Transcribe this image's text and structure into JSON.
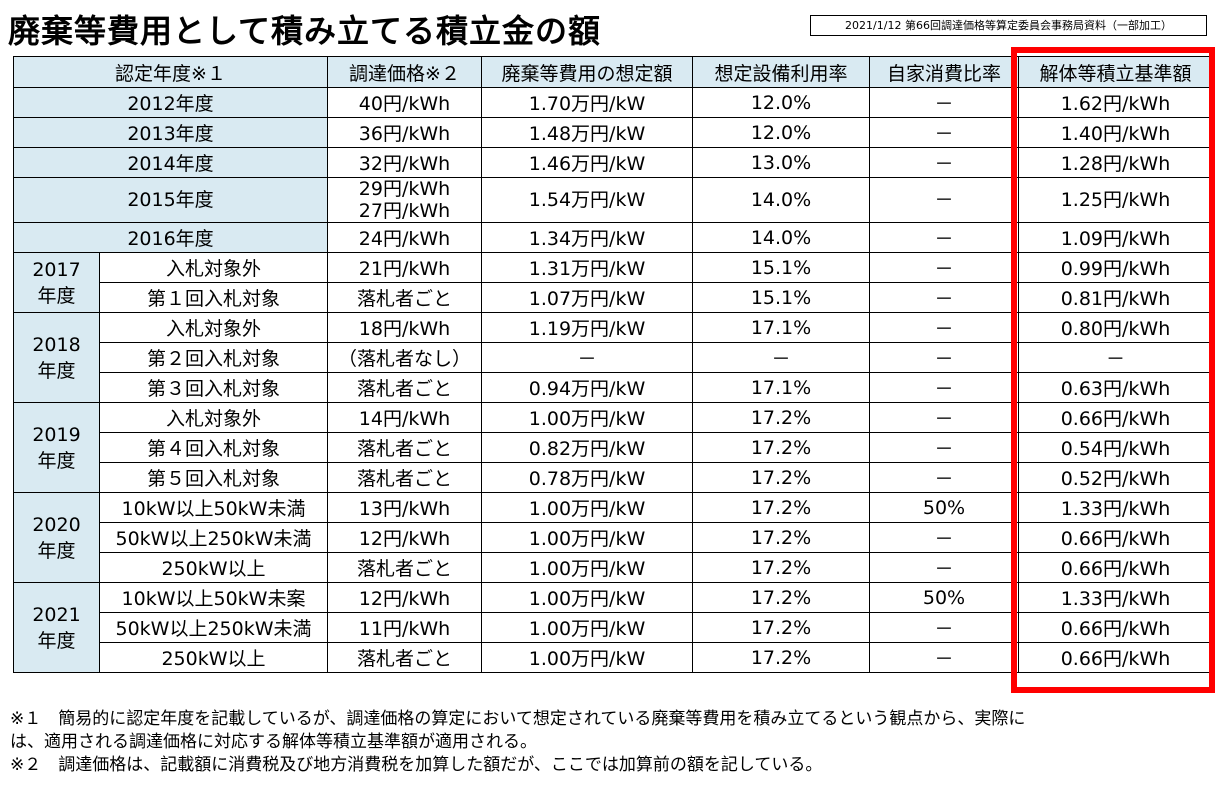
{
  "header": {
    "title": "廃棄等費用として積み立てる積立金の額",
    "source": "2021/1/12 第66回調達価格等算定委員会事務局資料（一部加工）"
  },
  "table": {
    "headers": [
      "認定年度※１",
      "調達価格※２",
      "廃棄等費用の想定額",
      "想定設備利用率",
      "自家消費比率",
      "解体等積立基準額"
    ],
    "simple_rows": [
      {
        "year": "2012年度",
        "price": "40円/kWh",
        "cost": "1.70万円/kW",
        "util": "12.0%",
        "self": "－",
        "reserve": "1.62円/kWh"
      },
      {
        "year": "2013年度",
        "price": "36円/kWh",
        "cost": "1.48万円/kW",
        "util": "12.0%",
        "self": "－",
        "reserve": "1.40円/kWh"
      },
      {
        "year": "2014年度",
        "price": "32円/kWh",
        "cost": "1.46万円/kW",
        "util": "13.0%",
        "self": "－",
        "reserve": "1.28円/kWh"
      },
      {
        "year": "2015年度",
        "price": "29円/kWh",
        "price2": "27円/kWh",
        "cost": "1.54万円/kW",
        "util": "14.0%",
        "self": "－",
        "reserve": "1.25円/kWh"
      },
      {
        "year": "2016年度",
        "price": "24円/kWh",
        "cost": "1.34万円/kW",
        "util": "14.0%",
        "self": "－",
        "reserve": "1.09円/kWh"
      }
    ],
    "groups": [
      {
        "year_num": "2017",
        "year_suffix": "年度",
        "rows": [
          {
            "category": "入札対象外",
            "price": "21円/kWh",
            "cost": "1.31万円/kW",
            "util": "15.1%",
            "self": "－",
            "reserve": "0.99円/kWh"
          },
          {
            "category": "第１回入札対象",
            "price": "落札者ごと",
            "cost": "1.07万円/kW",
            "util": "15.1%",
            "self": "－",
            "reserve": "0.81円/kWh"
          }
        ]
      },
      {
        "year_num": "2018",
        "year_suffix": "年度",
        "rows": [
          {
            "category": "入札対象外",
            "price": "18円/kWh",
            "cost": "1.19万円/kW",
            "util": "17.1%",
            "self": "－",
            "reserve": "0.80円/kWh"
          },
          {
            "category": "第２回入札対象",
            "price": "（落札者なし）",
            "cost": "－",
            "util": "－",
            "self": "－",
            "reserve": "－"
          },
          {
            "category": "第３回入札対象",
            "price": "落札者ごと",
            "cost": "0.94万円/kW",
            "util": "17.1%",
            "self": "－",
            "reserve": "0.63円/kWh"
          }
        ]
      },
      {
        "year_num": "2019",
        "year_suffix": "年度",
        "rows": [
          {
            "category": "入札対象外",
            "price": "14円/kWh",
            "cost": "1.00万円/kW",
            "util": "17.2%",
            "self": "－",
            "reserve": "0.66円/kWh"
          },
          {
            "category": "第４回入札対象",
            "price": "落札者ごと",
            "cost": "0.82万円/kW",
            "util": "17.2%",
            "self": "－",
            "reserve": "0.54円/kWh"
          },
          {
            "category": "第５回入札対象",
            "price": "落札者ごと",
            "cost": "0.78万円/kW",
            "util": "17.2%",
            "self": "－",
            "reserve": "0.52円/kWh"
          }
        ]
      },
      {
        "year_num": "2020",
        "year_suffix": "年度",
        "rows": [
          {
            "category": "10kW以上50kW未満",
            "price": "13円/kWh",
            "cost": "1.00万円/kW",
            "util": "17.2%",
            "self": "50%",
            "reserve": "1.33円/kWh"
          },
          {
            "category": "50kW以上250kW未満",
            "price": "12円/kWh",
            "cost": "1.00万円/kW",
            "util": "17.2%",
            "self": "－",
            "reserve": "0.66円/kWh"
          },
          {
            "category": "250kW以上",
            "price": "落札者ごと",
            "cost": "1.00万円/kW",
            "util": "17.2%",
            "self": "－",
            "reserve": "0.66円/kWh"
          }
        ]
      },
      {
        "year_num": "2021",
        "year_suffix": "年度",
        "rows": [
          {
            "category": "10kW以上50kW未案",
            "price": "12円/kWh",
            "cost": "1.00万円/kW",
            "util": "17.2%",
            "self": "50%",
            "reserve": "1.33円/kWh"
          },
          {
            "category": "50kW以上250kW未満",
            "price": "11円/kWh",
            "cost": "1.00万円/kW",
            "util": "17.2%",
            "self": "－",
            "reserve": "0.66円/kWh"
          },
          {
            "category": "250kW以上",
            "price": "落札者ごと",
            "cost": "1.00万円/kW",
            "util": "17.2%",
            "self": "－",
            "reserve": "0.66円/kWh"
          }
        ]
      }
    ]
  },
  "notes": {
    "note1_line1": "※１　簡易的に認定年度を記載しているが、調達価格の算定において想定されている廃棄等費用を積み立てるという観点から、実際に",
    "note1_line2": "は、適用される調達価格に対応する解体等積立基準額が適用される。",
    "note2": "※２　調達価格は、記載額に消費税及び地方消費税を加算した額だが、ここでは加算前の額を記している。"
  }
}
